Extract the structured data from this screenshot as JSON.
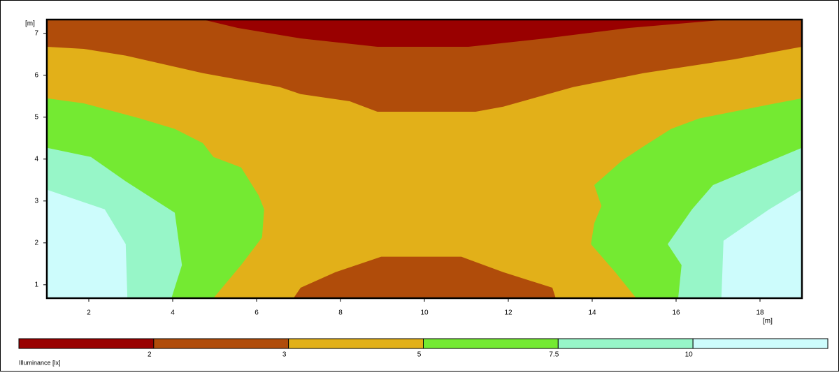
{
  "chart_data": {
    "type": "contour",
    "x_label": "[m]",
    "y_label": "[m]",
    "xlim": [
      1,
      19
    ],
    "ylim": [
      0.68,
      7.33
    ],
    "xticks": [
      2,
      4,
      6,
      8,
      10,
      12,
      14,
      16,
      18
    ],
    "yticks": [
      1,
      2,
      3,
      4,
      5,
      6,
      7
    ],
    "legend_title": "Illuminance [lx]",
    "levels": [
      2,
      3,
      5,
      7.5,
      10
    ],
    "colors": [
      "#990000",
      "#b04c0a",
      "#e2b019",
      "#74ea32",
      "#97f6c8",
      "#cdfcfc"
    ],
    "regions": [
      {
        "level": 1,
        "x": [
          1,
          4.72,
          5.55,
          7.05,
          8.88,
          11.05,
          12.88,
          14.88,
          17.22,
          19,
          19,
          1
        ],
        "y": [
          7.33,
          7.33,
          7.13,
          6.88,
          6.68,
          6.68,
          6.88,
          7.13,
          7.33,
          7.33,
          0.68,
          0.68
        ]
      },
      {
        "level": 2,
        "x": [
          1,
          1.88,
          2.88,
          4.72,
          6.55,
          7.05,
          8.22,
          8.88,
          11.22,
          11.88,
          13.55,
          15.22,
          17.38,
          19,
          19,
          13.13,
          13.05,
          11.88,
          10.88,
          8.97,
          7.88,
          7.05,
          6.88,
          1
        ],
        "y": [
          6.68,
          6.63,
          6.47,
          6.05,
          5.72,
          5.55,
          5.38,
          5.13,
          5.13,
          5.25,
          5.72,
          6.05,
          6.38,
          6.68,
          0.68,
          0.68,
          0.93,
          1.3,
          1.67,
          1.67,
          1.3,
          0.93,
          0.68,
          0.68
        ]
      },
      {
        "level": 3,
        "x": [
          1,
          1.88,
          3.22,
          4.05,
          4.72,
          4.97,
          5.63,
          6.05,
          6.18,
          6.13,
          5.63,
          4.97,
          1
        ],
        "y": [
          5.45,
          5.33,
          4.97,
          4.72,
          4.38,
          4.05,
          3.8,
          3.13,
          2.8,
          2.13,
          1.47,
          0.68,
          0.68
        ]
      },
      {
        "level": 3,
        "x": [
          19,
          18.22,
          16.55,
          15.88,
          15.22,
          14.72,
          14.05,
          14.22,
          14.05,
          13.97,
          14.55,
          15.05,
          19
        ],
        "y": [
          5.45,
          5.3,
          4.97,
          4.72,
          4.3,
          3.97,
          3.38,
          2.88,
          2.47,
          1.97,
          1.3,
          0.68,
          0.68
        ]
      },
      {
        "level": 4,
        "x": [
          1,
          2.05,
          2.88,
          4.05,
          4.22,
          3.97,
          1
        ],
        "y": [
          4.27,
          4.05,
          3.47,
          2.72,
          1.47,
          0.68,
          0.68
        ]
      },
      {
        "level": 4,
        "x": [
          19,
          17.88,
          16.88,
          16.38,
          15.8,
          16.13,
          16.05,
          19
        ],
        "y": [
          4.27,
          3.8,
          3.38,
          2.8,
          1.97,
          1.47,
          0.68,
          0.68
        ]
      },
      {
        "level": 5,
        "x": [
          1,
          2.38,
          2.88,
          2.92,
          1
        ],
        "y": [
          3.27,
          2.8,
          1.97,
          0.68,
          0.68
        ]
      },
      {
        "level": 5,
        "x": [
          19,
          18.22,
          17.13,
          17.08,
          19
        ],
        "y": [
          3.27,
          2.8,
          2.05,
          0.68,
          0.68
        ]
      }
    ]
  }
}
